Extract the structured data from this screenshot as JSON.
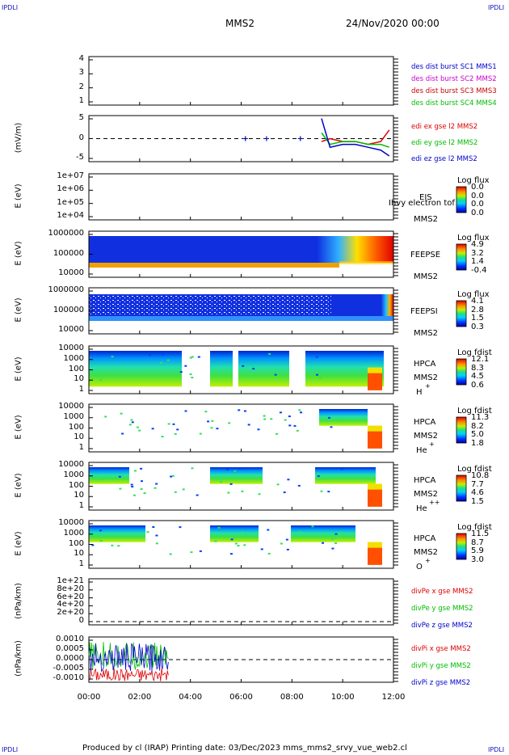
{
  "corner_label": "IPDLI",
  "header": {
    "spacecraft": "MMS2",
    "date": "24/Nov/2020 00:00"
  },
  "footer": {
    "text": "Produced by cl (IRAP)   Printing date: 03/Dec/2023   mms_mms2_srvy_vue_web2.cl"
  },
  "colors": {
    "sc1": "#0000cc",
    "sc2": "#cc00cc",
    "sc3": "#cc0000",
    "sc4": "#00bb00",
    "x": "#dd0000",
    "y": "#00bb00",
    "z": "#0000cc"
  },
  "x_ticks": [
    "00:00",
    "02:00",
    "04:00",
    "06:00",
    "08:00",
    "10:00",
    "12:00"
  ],
  "panels": [
    {
      "id": "p1",
      "ylabel": "",
      "yticks": [
        "4",
        "3",
        "2",
        "1"
      ],
      "legend": [
        "des dist burst SC1 MMS1",
        "des dist burst SC2 MMS2",
        "des dist burst SC3 MMS3",
        "des dist burst SC4 MMS4"
      ]
    },
    {
      "id": "p2",
      "ylabel": "(mV/m)",
      "yticks": [
        "5",
        "0",
        "-5"
      ],
      "legend": [
        "edi ex gse l2 MMS2",
        "edi ey gse l2 MMS2",
        "edi ez gse l2 MMS2"
      ]
    },
    {
      "id": "p3",
      "ylabel": "E (eV)",
      "yticks": [
        "1e+07",
        "1e+06",
        "1e+05",
        "1e+04"
      ],
      "right": [
        "EIS",
        "MMS2"
      ],
      "overlay": "Ihvy electron tof",
      "cbar": {
        "title": "Log flux",
        "values": [
          "0.0",
          "0.0",
          "0.0",
          "0.0"
        ]
      }
    },
    {
      "id": "p4",
      "ylabel": "E (eV)",
      "yticks": [
        "1000000",
        "100000",
        "10000"
      ],
      "right": [
        "FEEPSE",
        "MMS2"
      ],
      "cbar": {
        "title": "Log flux",
        "values": [
          "4.9",
          "3.2",
          "1.4",
          "-0.4"
        ]
      }
    },
    {
      "id": "p5",
      "ylabel": "E (eV)",
      "yticks": [
        "1000000",
        "100000",
        "10000"
      ],
      "right": [
        "FEEPSI",
        "MMS2"
      ],
      "cbar": {
        "title": "Log flux",
        "values": [
          "4.1",
          "2.8",
          "1.5",
          "0.3"
        ]
      }
    },
    {
      "id": "p6",
      "ylabel": "E (eV)",
      "yticks": [
        "10000",
        "1000",
        "100",
        "10",
        "1"
      ],
      "right": [
        "HPCA",
        "MMS2",
        "H",
        "+"
      ],
      "cbar": {
        "title": "Log fdist",
        "values": [
          "12.1",
          "8.3",
          "4.5",
          "0.6"
        ]
      }
    },
    {
      "id": "p7",
      "ylabel": "E (eV)",
      "yticks": [
        "10000",
        "1000",
        "100",
        "10",
        "1"
      ],
      "right": [
        "HPCA",
        "MMS2",
        "He",
        "+"
      ],
      "cbar": {
        "title": "Log fdist",
        "values": [
          "11.3",
          "8.2",
          "5.0",
          "1.8"
        ]
      }
    },
    {
      "id": "p8",
      "ylabel": "E (eV)",
      "yticks": [
        "10000",
        "1000",
        "100",
        "10",
        "1"
      ],
      "right": [
        "HPCA",
        "MMS2",
        "He",
        "++"
      ],
      "cbar": {
        "title": "Log fdist",
        "values": [
          "10.8",
          "7.7",
          "4.6",
          "1.5"
        ]
      }
    },
    {
      "id": "p9",
      "ylabel": "E (eV)",
      "yticks": [
        "10000",
        "1000",
        "100",
        "10",
        "1"
      ],
      "right": [
        "HPCA",
        "MMS2",
        "O",
        "+"
      ],
      "cbar": {
        "title": "Log fdist",
        "values": [
          "11.5",
          "8.7",
          "5.9",
          "3.0"
        ]
      }
    },
    {
      "id": "p10",
      "ylabel": "(nPa/km)",
      "yticks": [
        "1e+21",
        "8e+20",
        "6e+20",
        "4e+20",
        "2e+20",
        "0"
      ],
      "legend": [
        "divPe x gse MMS2",
        "divPe y gse MMS2",
        "divPe z gse MMS2"
      ]
    },
    {
      "id": "p11",
      "ylabel": "(nPa/km)",
      "yticks": [
        "0.0010",
        "0.0005",
        "0.0000",
        "-0.0005",
        "-0.0010"
      ],
      "legend": [
        "divPi x gse MMS2",
        "divPi y gse MMS2",
        "divPi z gse MMS2"
      ]
    }
  ],
  "chart_data": [
    {
      "type": "scatter",
      "title": "des dist burst",
      "ylim": [
        0.5,
        4.5
      ],
      "x": [],
      "series": []
    },
    {
      "type": "line",
      "ylabel": "(mV/m)",
      "ylim": [
        -8,
        8
      ],
      "x": [
        "06:10",
        "07:00",
        "08:20",
        "09:10",
        "09:30",
        "10:00",
        "10:30",
        "11:00",
        "11:30",
        "11:50"
      ],
      "series": [
        {
          "name": "edi ex gse l2 MMS2",
          "values": [
            0,
            0,
            0,
            -1,
            0,
            -1,
            -1,
            -2,
            -1,
            3
          ]
        },
        {
          "name": "edi ey gse l2 MMS2",
          "values": [
            0,
            0,
            0,
            2,
            -2,
            -1,
            -1,
            -2,
            -2,
            -3
          ]
        },
        {
          "name": "edi ez gse l2 MMS2",
          "values": [
            0,
            0,
            0,
            7,
            -3,
            -2,
            -2,
            -3,
            -4,
            -6
          ]
        }
      ]
    },
    {
      "type": "heatmap",
      "title": "EIS",
      "ylabel": "E (eV)",
      "ylim": [
        10000,
        10000000
      ],
      "series": []
    },
    {
      "type": "heatmap",
      "title": "FEEPSE",
      "ylabel": "E (eV)",
      "ylim": [
        10000,
        1000000
      ]
    },
    {
      "type": "heatmap",
      "title": "FEEPSI",
      "ylabel": "E (eV)",
      "ylim": [
        10000,
        1000000
      ]
    },
    {
      "type": "heatmap",
      "title": "HPCA H+",
      "ylabel": "E (eV)",
      "ylim": [
        1,
        10000
      ]
    },
    {
      "type": "heatmap",
      "title": "HPCA He+",
      "ylabel": "E (eV)",
      "ylim": [
        1,
        10000
      ]
    },
    {
      "type": "heatmap",
      "title": "HPCA He++",
      "ylabel": "E (eV)",
      "ylim": [
        1,
        10000
      ]
    },
    {
      "type": "heatmap",
      "title": "HPCA O+",
      "ylabel": "E (eV)",
      "ylim": [
        1,
        10000
      ]
    },
    {
      "type": "line",
      "ylabel": "(nPa/km)",
      "ylim": [
        0,
        1e+21
      ],
      "series": []
    },
    {
      "type": "line",
      "ylabel": "(nPa/km)",
      "ylim": [
        -0.0012,
        0.0012
      ],
      "x": [
        "00:00",
        "01:00",
        "02:00",
        "03:10"
      ],
      "series": [
        {
          "name": "divPi x gse MMS2",
          "values": [
            -0.0008,
            -0.0007,
            -0.0008,
            -0.0008
          ]
        },
        {
          "name": "divPi y gse MMS2",
          "values": [
            0.0002,
            0.0001,
            0.0002,
            0.0001
          ]
        },
        {
          "name": "divPi z gse MMS2",
          "values": [
            0.0001,
            0.0002,
            0.0001,
            0.0001
          ]
        }
      ]
    }
  ]
}
